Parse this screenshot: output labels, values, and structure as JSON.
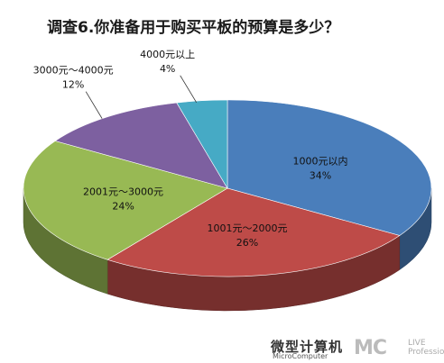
{
  "chart_data": {
    "type": "pie",
    "title": "调查6.你准备用于购买平板的预算是多少？",
    "slices": [
      {
        "label": "1000元以内",
        "value": 34,
        "value_text": "34%",
        "color": "#4a7ebb"
      },
      {
        "label": "1001元～2000元",
        "value": 26,
        "value_text": "26%",
        "color": "#be4b48"
      },
      {
        "label": "2001元～3000元",
        "value": 24,
        "value_text": "24%",
        "color": "#98b954"
      },
      {
        "label": "3000元～4000元",
        "value": 12,
        "value_text": "12%",
        "color": "#7d60a0"
      },
      {
        "label": "4000元以上",
        "value": 4,
        "value_text": "4%",
        "color": "#46aac5"
      }
    ],
    "legend": "none",
    "style": "3d"
  },
  "watermark": {
    "cn": "微型计算机",
    "en": "MicroComputer",
    "logo": "MC",
    "sub_top": "LIVE",
    "sub_bottom": "Professional"
  }
}
